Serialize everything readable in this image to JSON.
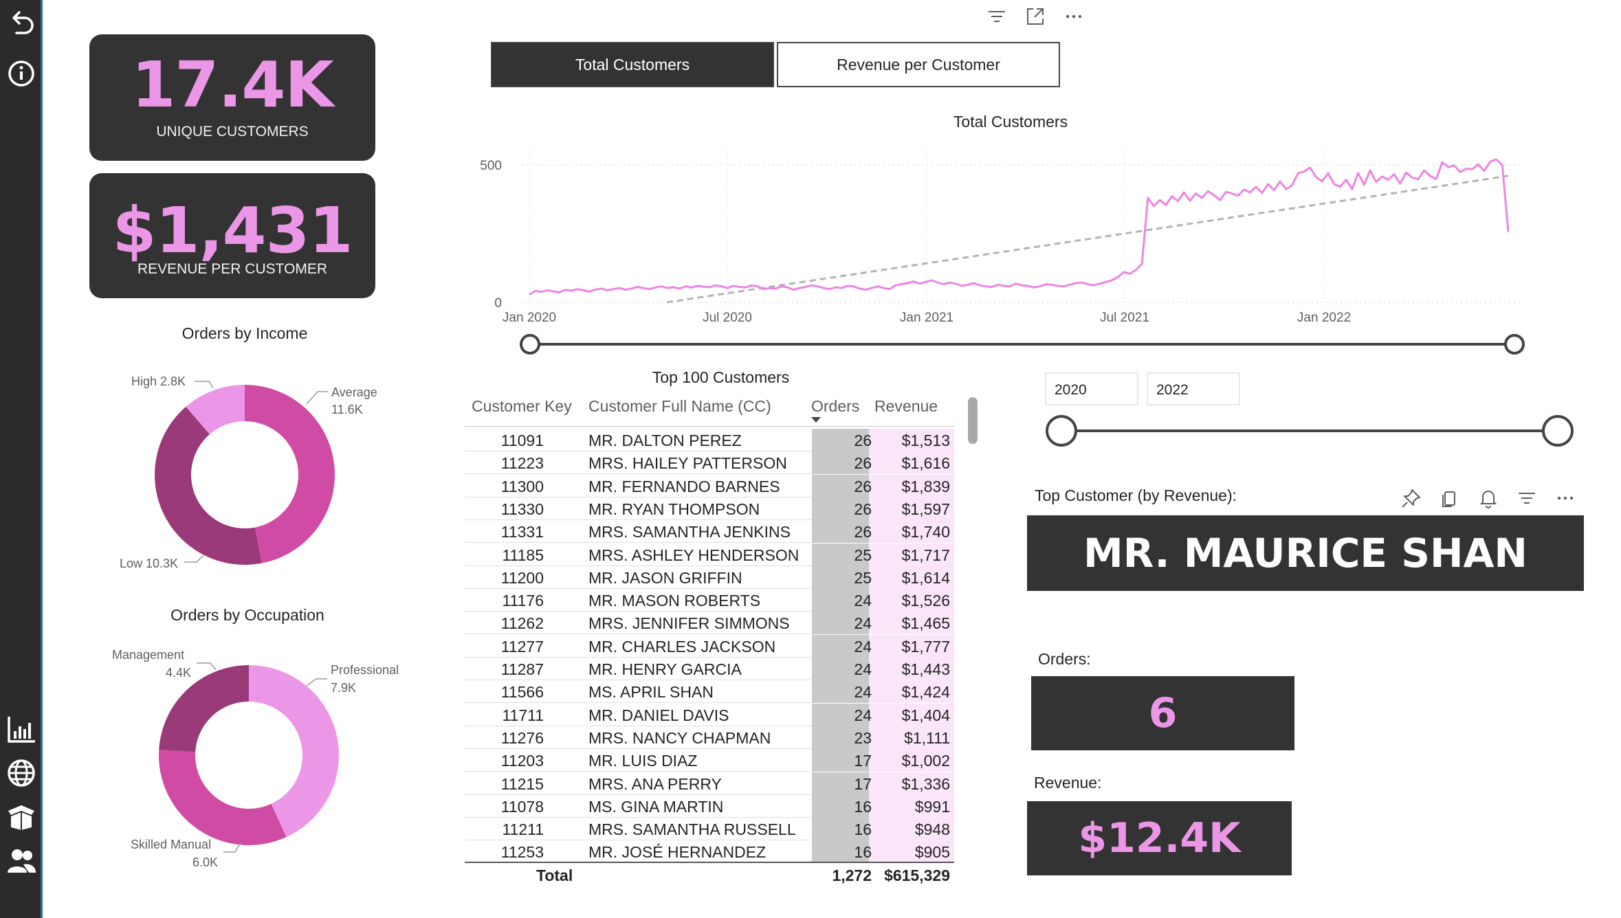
{
  "nav": {
    "icons": [
      "back-arrow-icon",
      "info-icon",
      "bar-chart-icon",
      "globe-icon",
      "box-icon",
      "users-icon"
    ]
  },
  "kpis": {
    "unique_customers": {
      "value": "17.4K",
      "label": "UNIQUE CUSTOMERS"
    },
    "revenue_per_customer": {
      "value": "$1,431",
      "label": "REVENUE PER CUSTOMER"
    }
  },
  "orders_by_income": {
    "title": "Orders by Income",
    "labels": {
      "high": "High 2.8K",
      "average_name": "Average",
      "average_value": "11.6K",
      "low": "Low 10.3K"
    },
    "colors": {
      "high": "#ec96e8",
      "average": "#d04ba4",
      "low": "#9b3a79"
    }
  },
  "orders_by_occupation": {
    "title": "Orders by Occupation",
    "labels": {
      "management_name": "Management",
      "management_value": "4.4K",
      "professional_name": "Professional",
      "professional_value": "7.9K",
      "skilled_name": "Skilled Manual",
      "skilled_value": "6.0K"
    },
    "colors": {
      "professional": "#ec96e8",
      "skilled": "#d04ba4",
      "management": "#9b3a79"
    }
  },
  "toggle": {
    "active": "Total Customers",
    "inactive": "Revenue per Customer"
  },
  "chart_data": {
    "type": "line",
    "title": "Total Customers",
    "xlabel": "",
    "ylabel": "",
    "x_ticks": [
      "Jan 2020",
      "Jul 2020",
      "Jan 2021",
      "Jul 2021",
      "Jan 2022"
    ],
    "y_ticks": [
      "0",
      "500"
    ],
    "ylim": [
      0,
      550
    ],
    "grid": true,
    "series": [
      {
        "values": [
          28,
          42,
          38,
          44,
          40,
          36,
          45,
          42,
          48,
          44,
          39,
          46,
          50,
          44,
          48,
          52,
          46,
          50,
          56,
          52,
          48,
          54,
          58,
          52,
          55,
          50,
          58,
          54,
          60,
          57,
          55,
          62,
          58,
          52,
          60,
          56,
          54,
          62,
          58,
          48,
          52,
          50,
          58,
          54,
          46,
          52,
          56,
          62,
          58,
          52,
          48,
          55,
          52,
          60,
          58,
          50,
          46,
          52,
          58,
          52,
          48,
          62,
          66,
          70,
          76,
          68,
          74,
          80,
          72,
          66,
          72,
          68,
          60,
          64,
          70,
          62,
          58,
          56,
          64,
          60,
          58,
          68,
          62,
          60,
          54,
          58,
          66,
          64,
          60,
          58,
          64,
          70,
          72,
          66,
          62,
          68,
          74,
          80,
          92,
          110,
          104,
          118,
          140,
          380,
          350,
          372,
          354,
          386,
          368,
          400,
          370,
          396,
          380,
          404,
          390,
          372,
          402,
          396,
          388,
          410,
          400,
          420,
          398,
          430,
          408,
          440,
          412,
          426,
          470,
          476,
          490,
          456,
          440,
          470,
          430,
          420,
          446,
          412,
          470,
          428,
          480,
          438,
          458,
          446,
          466,
          432,
          472,
          454,
          448,
          480,
          460,
          448,
          510,
          492,
          498,
          474,
          486,
          484,
          502,
          478,
          512,
          520,
          500,
          256
        ],
        "trend": true,
        "trend_start": -10,
        "trend_end": 460
      }
    ]
  },
  "table": {
    "title": "Top 100 Customers",
    "headers": [
      "Customer Key",
      "Customer Full Name (CC)",
      "Orders",
      "Revenue"
    ],
    "rows": [
      {
        "key": "11091",
        "name": "MR. DALTON PEREZ",
        "orders": "26",
        "revenue": "$1,513"
      },
      {
        "key": "11223",
        "name": "MRS. HAILEY PATTERSON",
        "orders": "26",
        "revenue": "$1,616"
      },
      {
        "key": "11300",
        "name": "MR. FERNANDO BARNES",
        "orders": "26",
        "revenue": "$1,839"
      },
      {
        "key": "11330",
        "name": "MR. RYAN THOMPSON",
        "orders": "26",
        "revenue": "$1,597"
      },
      {
        "key": "11331",
        "name": "MRS. SAMANTHA JENKINS",
        "orders": "26",
        "revenue": "$1,740"
      },
      {
        "key": "11185",
        "name": "MRS. ASHLEY HENDERSON",
        "orders": "25",
        "revenue": "$1,717"
      },
      {
        "key": "11200",
        "name": "MR. JASON GRIFFIN",
        "orders": "25",
        "revenue": "$1,614"
      },
      {
        "key": "11176",
        "name": "MR. MASON ROBERTS",
        "orders": "24",
        "revenue": "$1,526"
      },
      {
        "key": "11262",
        "name": "MRS. JENNIFER SIMMONS",
        "orders": "24",
        "revenue": "$1,465"
      },
      {
        "key": "11277",
        "name": "MR. CHARLES JACKSON",
        "orders": "24",
        "revenue": "$1,777"
      },
      {
        "key": "11287",
        "name": "MR. HENRY GARCIA",
        "orders": "24",
        "revenue": "$1,443"
      },
      {
        "key": "11566",
        "name": "MS. APRIL SHAN",
        "orders": "24",
        "revenue": "$1,424"
      },
      {
        "key": "11711",
        "name": "MR. DANIEL DAVIS",
        "orders": "24",
        "revenue": "$1,404"
      },
      {
        "key": "11276",
        "name": "MRS. NANCY CHAPMAN",
        "orders": "23",
        "revenue": "$1,111"
      },
      {
        "key": "11203",
        "name": "MR. LUIS DIAZ",
        "orders": "17",
        "revenue": "$1,002"
      },
      {
        "key": "11215",
        "name": "MRS. ANA PERRY",
        "orders": "17",
        "revenue": "$1,336"
      },
      {
        "key": "11078",
        "name": "MS. GINA MARTIN",
        "orders": "16",
        "revenue": "$991"
      },
      {
        "key": "11211",
        "name": "MRS. SAMANTHA RUSSELL",
        "orders": "16",
        "revenue": "$948"
      },
      {
        "key": "11253",
        "name": "MR. JOSÉ HERNANDEZ",
        "orders": "16",
        "revenue": "$905"
      }
    ],
    "total": {
      "label": "Total",
      "orders": "1,272",
      "revenue": "$615,329"
    }
  },
  "year_range": {
    "start": "2020",
    "end": "2022"
  },
  "top_customer": {
    "label": "Top Customer (by Revenue):",
    "name": "MR. MAURICE SHAN",
    "orders_label": "Orders:",
    "orders": "6",
    "revenue_label": "Revenue:",
    "revenue": "$12.4K"
  }
}
